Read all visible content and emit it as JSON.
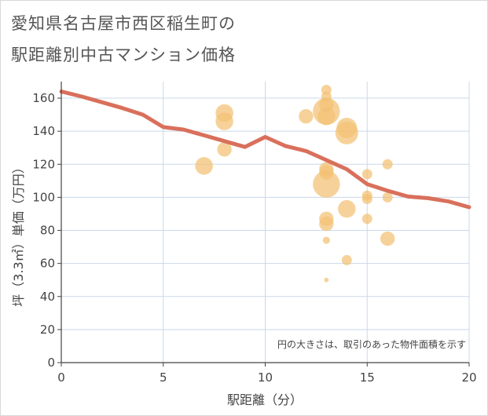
{
  "title_lines": [
    "愛知県名古屋市西区稲生町の",
    "駅距離別中古マンション価格"
  ],
  "chart_data": {
    "type": "scatter",
    "title": "愛知県名古屋市西区稲生町の駅距離別中古マンション価格",
    "xlabel": "駅距離（分）",
    "ylabel": "坪（3.3㎡）単価（万円）",
    "xlim": [
      0,
      20
    ],
    "ylim": [
      0,
      170
    ],
    "xticks": [
      0,
      5,
      10,
      15,
      20
    ],
    "yticks": [
      0,
      20,
      40,
      60,
      80,
      100,
      120,
      140,
      160
    ],
    "grid": true,
    "note": "円の大きさは、取引のあった物件面積を示す",
    "colors": {
      "bubble": "#f3c173",
      "line": "#d9705c",
      "grid": "#c9d9ea"
    },
    "bubbles": [
      {
        "x": 7,
        "y": 119,
        "size": 3
      },
      {
        "x": 8,
        "y": 151,
        "size": 3
      },
      {
        "x": 8,
        "y": 146,
        "size": 3
      },
      {
        "x": 8,
        "y": 129,
        "size": 2
      },
      {
        "x": 12,
        "y": 149,
        "size": 2
      },
      {
        "x": 13,
        "y": 165,
        "size": 1
      },
      {
        "x": 13,
        "y": 161,
        "size": 1
      },
      {
        "x": 13,
        "y": 152,
        "size": 7
      },
      {
        "x": 13,
        "y": 156,
        "size": 2
      },
      {
        "x": 13,
        "y": 149,
        "size": 3
      },
      {
        "x": 13,
        "y": 117,
        "size": 2
      },
      {
        "x": 13,
        "y": 115,
        "size": 2
      },
      {
        "x": 13,
        "y": 108,
        "size": 7
      },
      {
        "x": 13,
        "y": 87,
        "size": 2
      },
      {
        "x": 13,
        "y": 84,
        "size": 2
      },
      {
        "x": 13,
        "y": 74,
        "size": 0.5
      },
      {
        "x": 13,
        "y": 50,
        "size": 0.2
      },
      {
        "x": 14,
        "y": 142,
        "size": 4
      },
      {
        "x": 14,
        "y": 139,
        "size": 5
      },
      {
        "x": 14,
        "y": 93,
        "size": 3
      },
      {
        "x": 14,
        "y": 62,
        "size": 1
      },
      {
        "x": 15,
        "y": 114,
        "size": 1
      },
      {
        "x": 15,
        "y": 101,
        "size": 1
      },
      {
        "x": 15,
        "y": 99,
        "size": 1
      },
      {
        "x": 15,
        "y": 87,
        "size": 1
      },
      {
        "x": 16,
        "y": 120,
        "size": 1
      },
      {
        "x": 16,
        "y": 100,
        "size": 1
      },
      {
        "x": 16,
        "y": 75,
        "size": 2
      }
    ],
    "trend_line": {
      "x": [
        0,
        1,
        2,
        3,
        4,
        5,
        6,
        7,
        8,
        9,
        10,
        11,
        12,
        13,
        14,
        15,
        16,
        17,
        18,
        19,
        20
      ],
      "y": [
        164,
        161,
        157.5,
        154,
        150,
        142.5,
        141,
        137.5,
        134,
        130.5,
        136.5,
        131,
        128,
        122.5,
        117,
        108,
        104,
        100.5,
        99.5,
        97.5,
        94
      ]
    }
  }
}
